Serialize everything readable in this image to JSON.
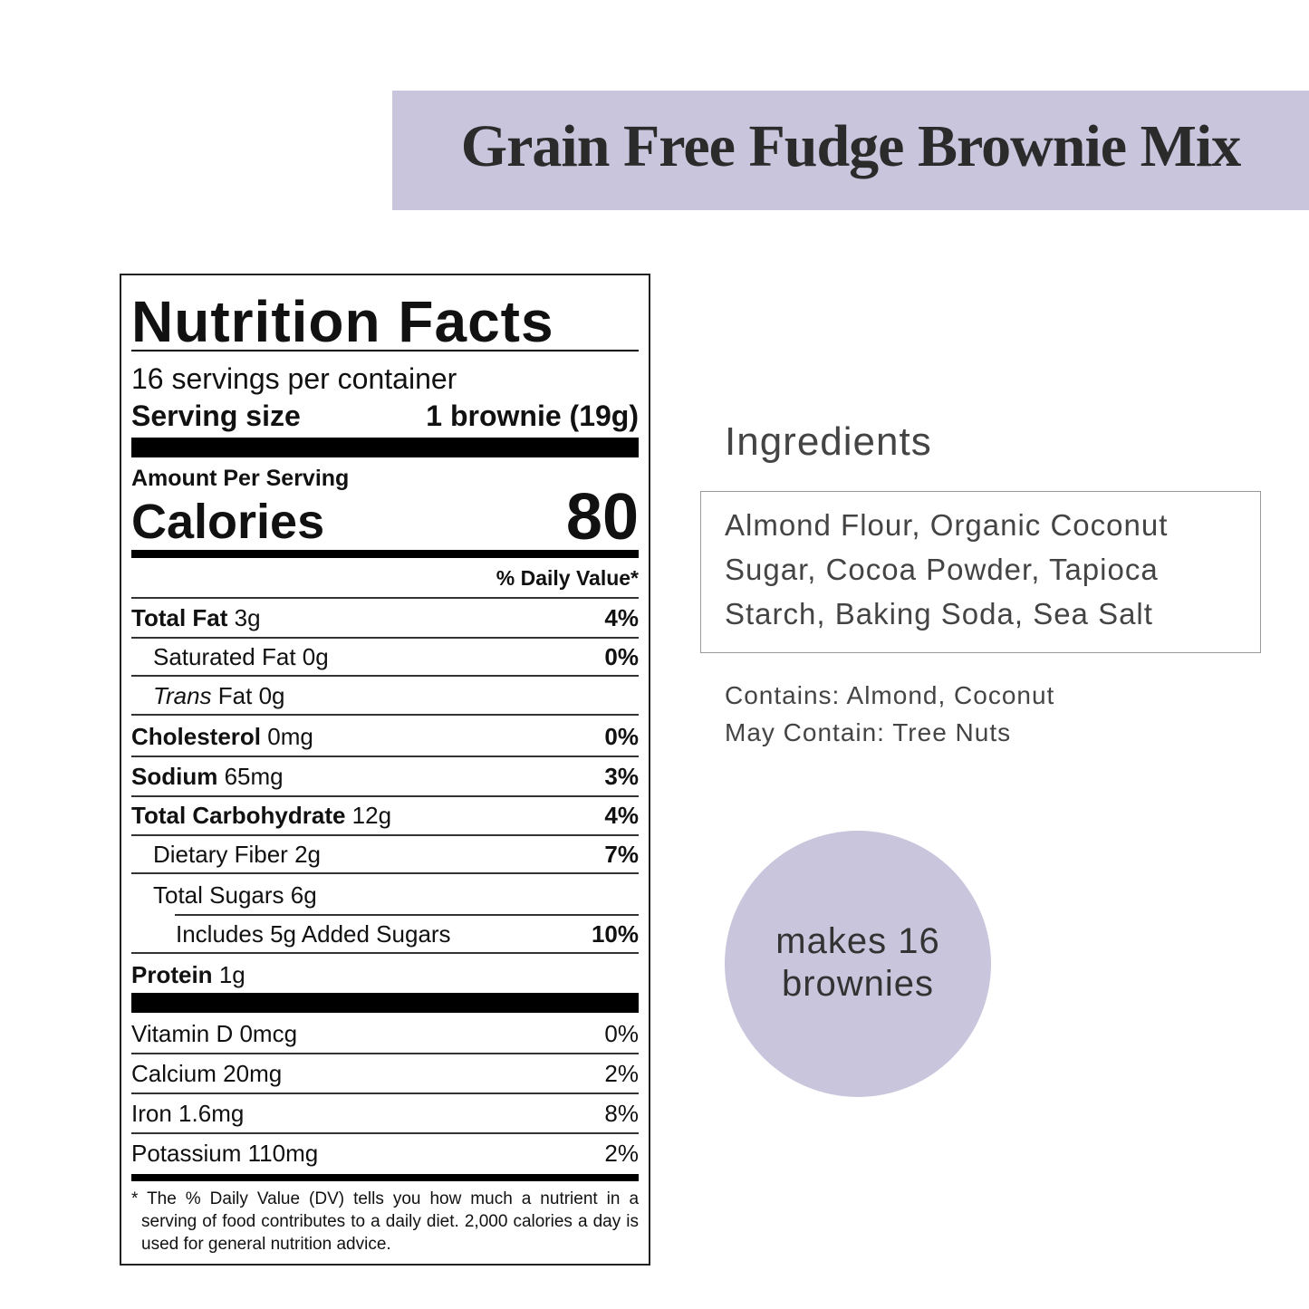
{
  "header": {
    "title": "Grain Free Fudge Brownie Mix"
  },
  "nutrition": {
    "title": "Nutrition Facts",
    "servings": "16 servings per container",
    "serving_size_label": "Serving size",
    "serving_size": "1 brownie (19g)",
    "amount_per_serving": "Amount Per Serving",
    "calories_label": "Calories",
    "calories": "80",
    "dv_header": "% Daily Value*",
    "rows": [
      {
        "name": "Total Fat",
        "amount": "3g",
        "dv": "4%"
      },
      {
        "name": "Saturated Fat",
        "amount": "0g",
        "dv": "0%"
      },
      {
        "name_italic": "Trans",
        "name": "Fat",
        "amount": "0g"
      },
      {
        "name": "Cholesterol",
        "amount": "0mg",
        "dv": "0%"
      },
      {
        "name": "Sodium",
        "amount": "65mg",
        "dv": "3%"
      },
      {
        "name": "Total Carbohydrate",
        "amount": "12g",
        "dv": "4%"
      },
      {
        "name": "Dietary Fiber",
        "amount": "2g",
        "dv": "7%"
      },
      {
        "name": "Total Sugars",
        "amount": "6g"
      },
      {
        "name": "Includes 5g Added Sugars",
        "dv": "10%"
      },
      {
        "name": "Protein",
        "amount": "1g"
      }
    ],
    "vitamins": [
      {
        "name": "Vitamin D",
        "amount": "0mcg",
        "dv": "0%"
      },
      {
        "name": "Calcium",
        "amount": "20mg",
        "dv": "2%"
      },
      {
        "name": "Iron",
        "amount": "1.6mg",
        "dv": "8%"
      },
      {
        "name": "Potassium",
        "amount": "110mg",
        "dv": "2%"
      }
    ],
    "footnote_mark": "*",
    "footnote": "The % Daily Value (DV) tells you how much a nutrient in a serving of food contributes to a daily diet. 2,000 calories a day is used for general nutrition advice."
  },
  "ingredients": {
    "heading": "Ingredients",
    "text": "Almond Flour, Organic Coconut Sugar, Cocoa Powder, Tapioca Starch, Baking Soda, Sea Salt",
    "contains": "Contains: Almond, Coconut",
    "may_contain": "May Contain: Tree Nuts"
  },
  "badge": {
    "line1": "makes 16",
    "line2": "brownies"
  }
}
